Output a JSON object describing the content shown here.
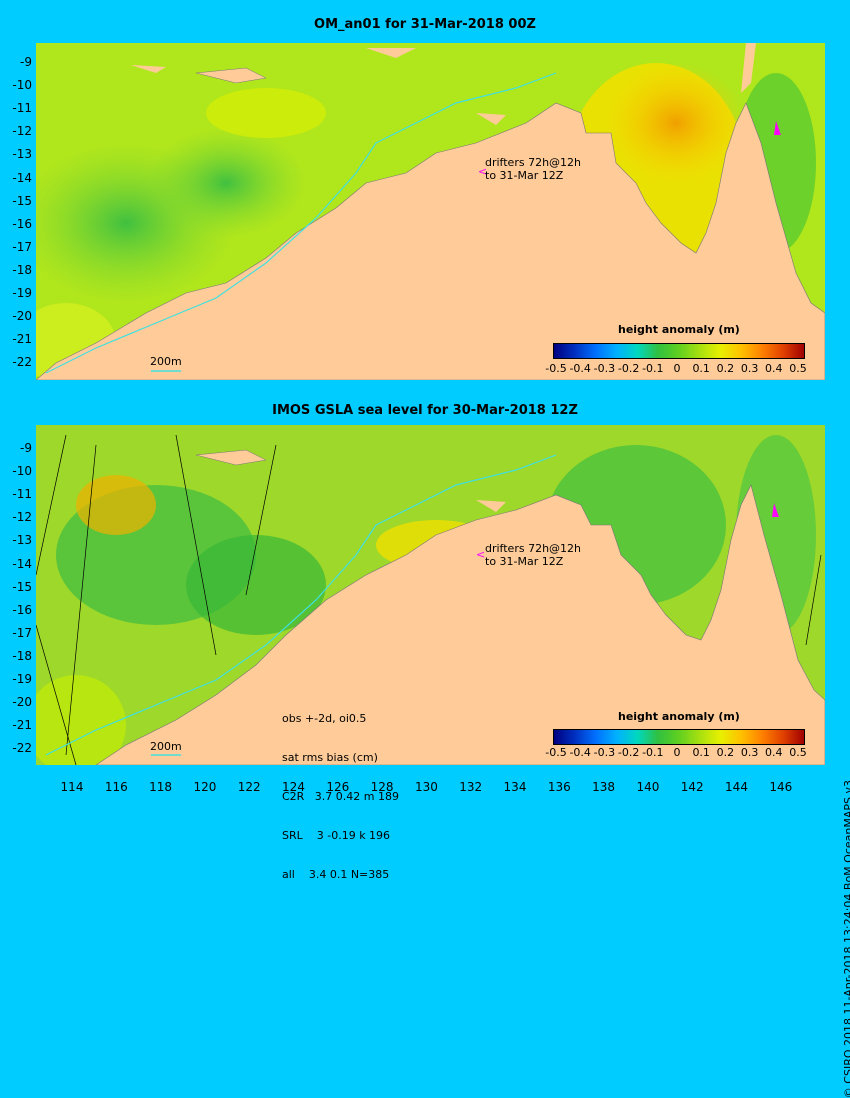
{
  "top_panel": {
    "title": "OM_an01 for 31-Mar-2018 00Z",
    "drifters_text": [
      "drifters 72h@12h",
      "to 31-Mar 12Z"
    ],
    "scale_label": "200m",
    "colorbar": {
      "title": "height anomaly (m)",
      "ticks": [
        "-0.5",
        "-0.4",
        "-0.3",
        "-0.2",
        "-0.1",
        "0",
        "0.1",
        "0.2",
        "0.3",
        "0.4",
        "0.5"
      ]
    }
  },
  "bottom_panel": {
    "title": "IMOS GSLA sea level  for 30-Mar-2018 12Z",
    "drifters_text": [
      "drifters 72h@12h",
      "to 31-Mar 12Z"
    ],
    "scale_label": "200m",
    "stats": [
      "obs +-2d, oi0.5",
      "sat rms bias (cm)",
      "C2R   3.7 0.42 m 189",
      "SRL    3 -0.19 k 196",
      "all    3.4 0.1 N=385"
    ],
    "colorbar": {
      "title": "height anomaly (m)",
      "ticks": [
        "-0.5",
        "-0.4",
        "-0.3",
        "-0.2",
        "-0.1",
        "0",
        "0.1",
        "0.2",
        "0.3",
        "0.4",
        "0.5"
      ]
    }
  },
  "latitude_ticks": [
    "-9",
    "-10",
    "-11",
    "-12",
    "-13",
    "-14",
    "-15",
    "-16",
    "-17",
    "-18",
    "-19",
    "-20",
    "-21",
    "-22"
  ],
  "longitude_ticks": [
    "114",
    "116",
    "118",
    "120",
    "122",
    "124",
    "126",
    "128",
    "130",
    "132",
    "134",
    "136",
    "138",
    "140",
    "142",
    "144",
    "146"
  ],
  "credit": "© CSIRO 2018  11-Apr-2018 13:24:04 BoM OceanMAPS v3",
  "colors": {
    "background": "#00ccff",
    "land": "#ffcc99",
    "ocean_base": "#b8e81a",
    "drifter": "#ff00ff"
  },
  "colormap": [
    "#000080",
    "#0030c0",
    "#0070ff",
    "#00b0ff",
    "#00d8c0",
    "#30c040",
    "#60d020",
    "#a8e010",
    "#e8f000",
    "#ffc000",
    "#ff8000",
    "#e04000",
    "#a00000"
  ]
}
